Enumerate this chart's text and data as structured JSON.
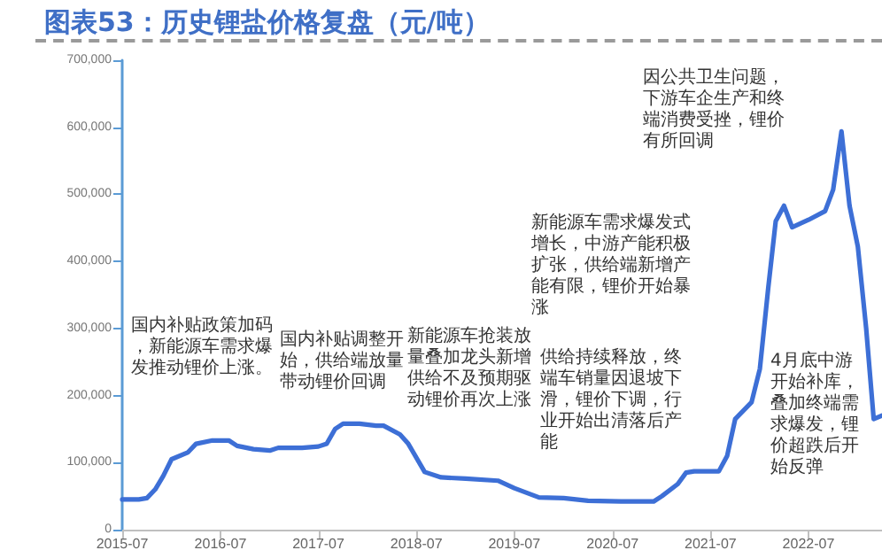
{
  "chart_data": {
    "type": "line",
    "title": "图表53：历史锂盐价格复盘（元/吨）",
    "x": [
      "2015-07",
      "2015-09",
      "2015-10",
      "2015-11",
      "2015-12",
      "2016-01",
      "2016-03",
      "2016-04",
      "2016-06",
      "2016-08",
      "2016-09",
      "2016-11",
      "2017-01",
      "2017-02",
      "2017-05",
      "2017-07",
      "2017-08",
      "2017-09",
      "2017-10",
      "2017-12",
      "2018-02",
      "2018-03",
      "2018-05",
      "2018-06",
      "2018-08",
      "2018-10",
      "2019-01",
      "2019-05",
      "2019-07",
      "2019-10",
      "2020-01",
      "2020-04",
      "2020-08",
      "2020-12",
      "2021-01",
      "2021-03",
      "2021-04",
      "2021-05",
      "2021-08",
      "2021-09",
      "2021-10",
      "2021-12",
      "2022-01",
      "2022-02",
      "2022-03",
      "2022-04",
      "2022-05",
      "2022-07",
      "2022-09",
      "2022-10",
      "2022-11",
      "2022-12",
      "2023-01",
      "2023-02",
      "2023-03",
      "2023-04"
    ],
    "series": [
      {
        "color": "#3d6fd6",
        "values": [
          45000,
          45000,
          47000,
          60000,
          80000,
          105000,
          115000,
          128000,
          133000,
          133000,
          125000,
          120000,
          118000,
          122000,
          122000,
          124000,
          128000,
          150000,
          158000,
          158000,
          155000,
          155000,
          142000,
          128000,
          86000,
          78000,
          76000,
          73000,
          62000,
          48000,
          47000,
          43000,
          42000,
          42000,
          50000,
          68000,
          85000,
          87000,
          87000,
          110000,
          165000,
          190000,
          240000,
          360000,
          460000,
          483000,
          451000,
          462000,
          475000,
          507000,
          594000,
          483000,
          422000,
          300000,
          165000,
          170000
        ]
      }
    ],
    "xlim": [
      "2015-07",
      "2023-04"
    ],
    "xticks": [
      "2015-07",
      "2016-07",
      "2017-07",
      "2018-07",
      "2019-07",
      "2020-07",
      "2021-07",
      "2022-07"
    ],
    "ylim": [
      0,
      700000
    ],
    "yticks": [
      0,
      {
        "value": 100000,
        "label": "100,000"
      },
      {
        "value": 200000,
        "label": "200,000"
      },
      {
        "value": 300000,
        "label": "300,000"
      },
      {
        "value": 400000,
        "label": "400,000"
      },
      {
        "value": 500000,
        "label": "500,000"
      },
      {
        "value": 600000,
        "label": "600,000"
      },
      {
        "value": 700000,
        "label": "700,000"
      }
    ],
    "grid": false,
    "marker": "none",
    "line_style": "solid",
    "annotations": [
      "国内补贴政策加码，新能源车需求爆发推动锂价上涨。",
      "国内补贴调整开始，供给端放量带动锂价回调",
      "新能源车抢装放量叠加龙头新增供给不及预期驱动锂价再次上涨",
      "供给持续释放，终端车销量因退坡下滑，锂价下调，行业开始出清落后产能",
      "新能源车需求爆发式增长，中游产能积极扩张，供给端新增产能有限，锂价开始暴涨",
      "因公共卫生问题，下游车企生产和终端消费受挫，锂价有所回调",
      "4月底中游开始补库，叠加终端需求爆发，锂价超跌后开始反弹"
    ]
  }
}
